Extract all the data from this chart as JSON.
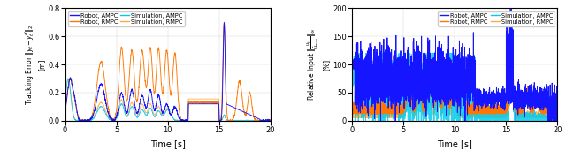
{
  "subplot1": {
    "xlabel": "Time [s]",
    "ylabel_line1": "Tracking Error $\\|y_t - y_t^d\\|_2$",
    "ylabel_unit": "[m]",
    "xlim": [
      0,
      20
    ],
    "ylim": [
      0,
      0.8
    ],
    "yticks": [
      0,
      0.2,
      0.4,
      0.6,
      0.8
    ],
    "xticks": [
      0,
      5,
      10,
      15,
      20
    ],
    "colors": {
      "robot_ampc": "#1515FF",
      "robot_rmpc": "#FF7700",
      "sim_ampc": "#00CCEE",
      "sim_rmpc": "#FFAA44"
    }
  },
  "subplot2": {
    "xlabel": "Time [s]",
    "ylabel_line1": "Relative Input $\\|\\frac{u_t}{\\hat{u}_{max}}\\|_\\infty$",
    "ylabel_unit": "[%]",
    "xlim": [
      0,
      20
    ],
    "ylim": [
      0,
      200
    ],
    "yticks": [
      0,
      50,
      100,
      150,
      200
    ],
    "xticks": [
      0,
      5,
      10,
      15,
      20
    ],
    "colors": {
      "robot_ampc": "#1515FF",
      "robot_rmpc": "#FF7700",
      "sim_ampc": "#00CCEE",
      "sim_rmpc": "#FFAA44"
    }
  },
  "seed": 7
}
